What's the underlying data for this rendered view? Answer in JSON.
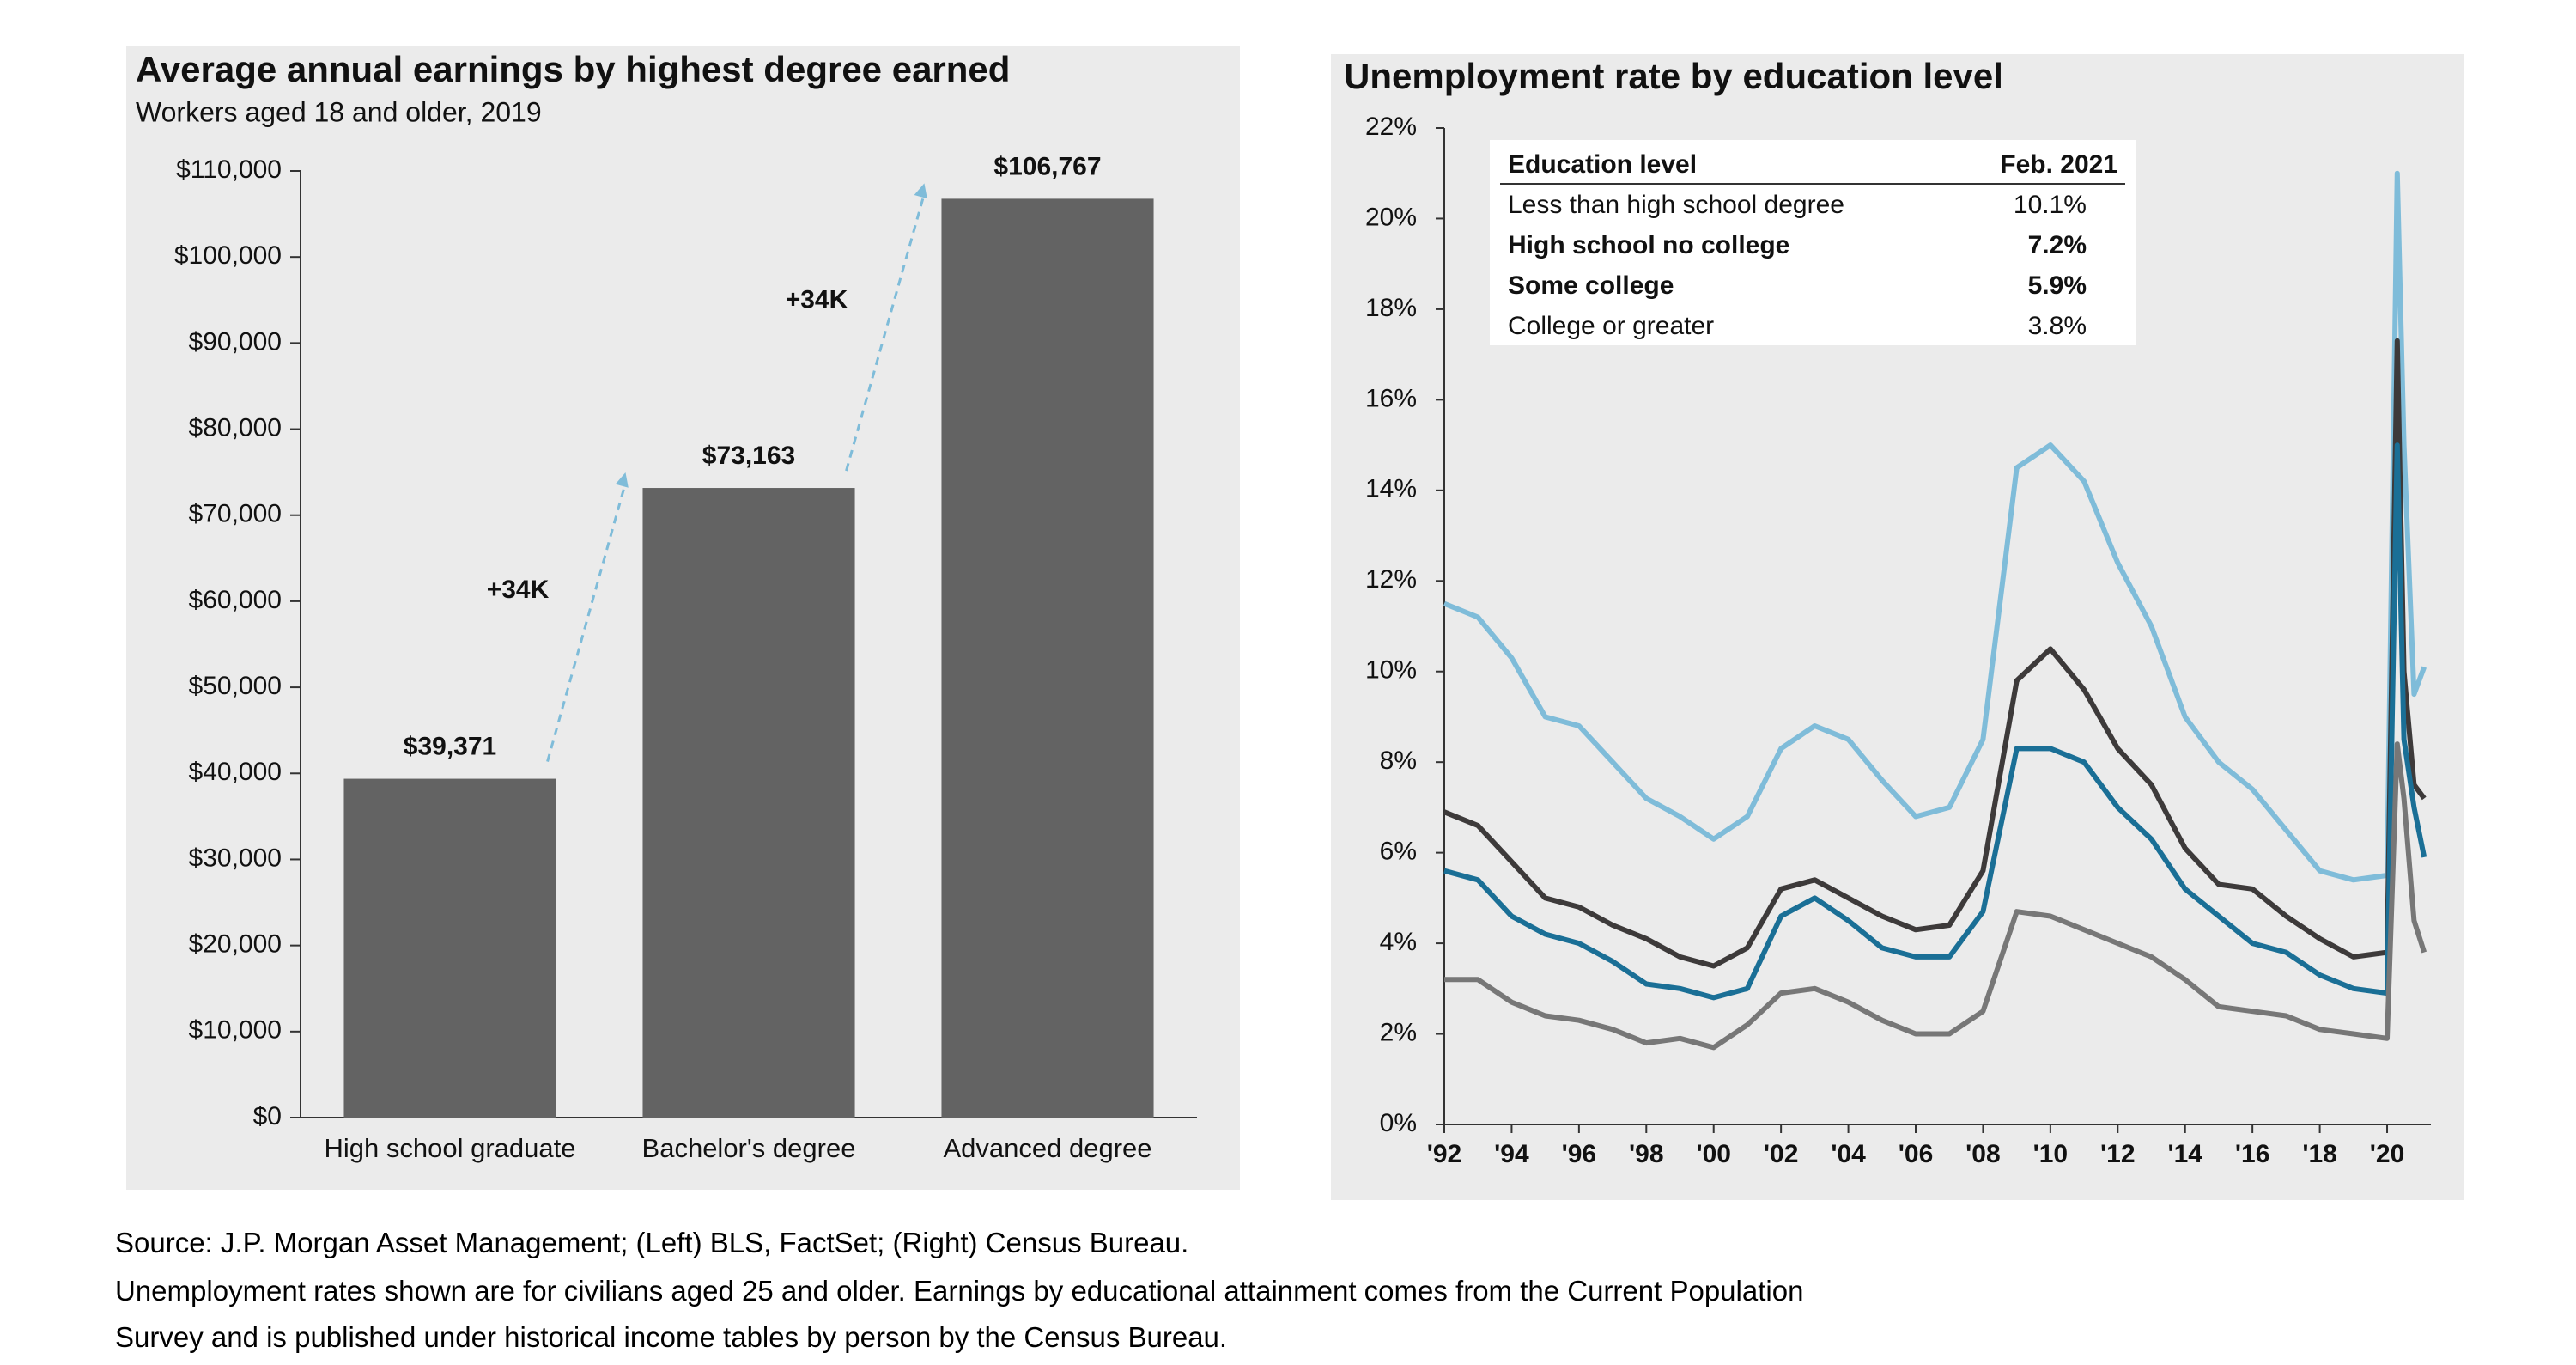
{
  "chart_data": [
    {
      "type": "bar",
      "title": "Average annual earnings by highest degree earned",
      "subtitle": "Workers aged 18 and older, 2019",
      "categories": [
        "High school graduate",
        "Bachelor's degree",
        "Advanced degree"
      ],
      "values": [
        39371,
        73163,
        106767
      ],
      "value_labels": [
        "$39,371",
        "$73,163",
        "$106,767"
      ],
      "color": "#636363",
      "ylim": [
        0,
        110000
      ],
      "yticks": [
        {
          "value": 0,
          "label": "$0"
        },
        {
          "value": 10000,
          "label": "$10,000"
        },
        {
          "value": 20000,
          "label": "$20,000"
        },
        {
          "value": 30000,
          "label": "$30,000"
        },
        {
          "value": 40000,
          "label": "$40,000"
        },
        {
          "value": 50000,
          "label": "$50,000"
        },
        {
          "value": 60000,
          "label": "$60,000"
        },
        {
          "value": 70000,
          "label": "$70,000"
        },
        {
          "value": 80000,
          "label": "$80,000"
        },
        {
          "value": 90000,
          "label": "$90,000"
        },
        {
          "value": 100000,
          "label": "$100,000"
        },
        {
          "value": 110000,
          "label": "$110,000"
        }
      ],
      "annotations": [
        "+34K",
        "+34K"
      ],
      "annotation_color": "#7fbcd9"
    },
    {
      "type": "line",
      "title": "Unemployment rate by education level",
      "legend_title": "Education level",
      "legend_value_title": "Feb. 2021",
      "x": [
        1992,
        1993,
        1994,
        1995,
        1996,
        1997,
        1998,
        1999,
        2000,
        2001,
        2002,
        2003,
        2004,
        2005,
        2006,
        2007,
        2008,
        2009,
        2010,
        2011,
        2012,
        2013,
        2014,
        2015,
        2016,
        2017,
        2018,
        2019,
        2020.0,
        2020.3,
        2020.5,
        2020.8,
        2021.1
      ],
      "series": [
        {
          "name": "Less than high school degree",
          "color": "#7fbcd9",
          "latest": "10.1%",
          "values": [
            11.5,
            11.2,
            10.3,
            9.0,
            8.8,
            8.0,
            7.2,
            6.8,
            6.3,
            6.8,
            8.3,
            8.8,
            8.5,
            7.6,
            6.8,
            7.0,
            8.5,
            14.5,
            15.0,
            14.2,
            12.4,
            11.0,
            9.0,
            8.0,
            7.4,
            6.5,
            5.6,
            5.4,
            5.5,
            21.0,
            15.0,
            9.5,
            10.1
          ]
        },
        {
          "name": "High school no college",
          "color": "#3d3a3a",
          "latest": "7.2%",
          "values": [
            6.9,
            6.6,
            5.8,
            5.0,
            4.8,
            4.4,
            4.1,
            3.7,
            3.5,
            3.9,
            5.2,
            5.4,
            5.0,
            4.6,
            4.3,
            4.4,
            5.6,
            9.8,
            10.5,
            9.6,
            8.3,
            7.5,
            6.1,
            5.3,
            5.2,
            4.6,
            4.1,
            3.7,
            3.8,
            17.3,
            10.0,
            7.5,
            7.2
          ]
        },
        {
          "name": "Some college",
          "color": "#1a6f96",
          "latest": "5.9%",
          "values": [
            5.6,
            5.4,
            4.6,
            4.2,
            4.0,
            3.6,
            3.1,
            3.0,
            2.8,
            3.0,
            4.6,
            5.0,
            4.5,
            3.9,
            3.7,
            3.7,
            4.7,
            8.3,
            8.3,
            8.0,
            7.0,
            6.3,
            5.2,
            4.6,
            4.0,
            3.8,
            3.3,
            3.0,
            2.9,
            15.0,
            8.5,
            7.0,
            5.9
          ]
        },
        {
          "name": "College or greater",
          "color": "#777777",
          "latest": "3.8%",
          "values": [
            3.2,
            3.2,
            2.7,
            2.4,
            2.3,
            2.1,
            1.8,
            1.9,
            1.7,
            2.2,
            2.9,
            3.0,
            2.7,
            2.3,
            2.0,
            2.0,
            2.5,
            4.7,
            4.6,
            4.3,
            4.0,
            3.7,
            3.2,
            2.6,
            2.5,
            2.4,
            2.1,
            2.0,
            1.9,
            8.4,
            7.2,
            4.5,
            3.8
          ]
        }
      ],
      "xlim": [
        1992,
        2021.3
      ],
      "xticks": [
        {
          "value": 1992,
          "label": "'92"
        },
        {
          "value": 1994,
          "label": "'94"
        },
        {
          "value": 1996,
          "label": "'96"
        },
        {
          "value": 1998,
          "label": "'98"
        },
        {
          "value": 2000,
          "label": "'00"
        },
        {
          "value": 2002,
          "label": "'02"
        },
        {
          "value": 2004,
          "label": "'04"
        },
        {
          "value": 2006,
          "label": "'06"
        },
        {
          "value": 2008,
          "label": "'08"
        },
        {
          "value": 2010,
          "label": "'10"
        },
        {
          "value": 2012,
          "label": "'12"
        },
        {
          "value": 2014,
          "label": "'14"
        },
        {
          "value": 2016,
          "label": "'16"
        },
        {
          "value": 2018,
          "label": "'18"
        },
        {
          "value": 2020,
          "label": "'20"
        }
      ],
      "ylim": [
        0,
        22
      ],
      "yticks": [
        {
          "value": 0,
          "label": "0%"
        },
        {
          "value": 2,
          "label": "2%"
        },
        {
          "value": 4,
          "label": "4%"
        },
        {
          "value": 6,
          "label": "6%"
        },
        {
          "value": 8,
          "label": "8%"
        },
        {
          "value": 10,
          "label": "10%"
        },
        {
          "value": 12,
          "label": "12%"
        },
        {
          "value": 14,
          "label": "14%"
        },
        {
          "value": 16,
          "label": "16%"
        },
        {
          "value": 18,
          "label": "18%"
        },
        {
          "value": 20,
          "label": "20%"
        },
        {
          "value": 22,
          "label": "22%"
        }
      ]
    }
  ],
  "footnotes": [
    "Source: J.P. Morgan Asset Management; (Left) BLS, FactSet; (Right) Census Bureau.",
    "Unemployment rates shown are for civilians aged 25 and older. Earnings by educational attainment comes from the Current Population",
    "Survey and is published under historical income tables by person by the Census Bureau."
  ]
}
